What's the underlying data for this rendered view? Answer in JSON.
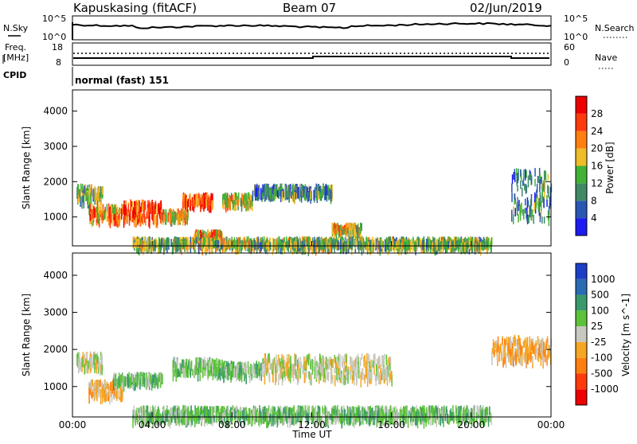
{
  "header": {
    "station": "Kapuskasing (fitACF)",
    "beam": "Beam 07",
    "date": "02/Jun/2019"
  },
  "noise_panel": {
    "left_label": "N.Sky",
    "left_ticks": [
      "10^5",
      "10^0"
    ],
    "right_label": "N.Search",
    "right_ticks": [
      "10^5",
      "10^0"
    ]
  },
  "freq_panel": {
    "left_label_1": "Freq.",
    "left_label_2": "[MHz]",
    "left_ticks": [
      "18",
      "8"
    ],
    "right_label": "Nave",
    "right_ticks": [
      "60",
      "0"
    ],
    "cpid_label": "CPID",
    "cpid_name": "normal (fast) 151"
  },
  "time_axis": {
    "label": "Time UT",
    "ticks": [
      "00:00",
      "04:00",
      "08:00",
      "12:00",
      "16:00",
      "20:00",
      "00:00"
    ]
  },
  "range_axis": {
    "label": "Slant Range [km]",
    "ticks": [
      "1000",
      "2000",
      "3000",
      "4000"
    ]
  },
  "power_colorbar": {
    "label": "Power [dB]",
    "ticks": [
      "4",
      "8",
      "12",
      "16",
      "20",
      "24",
      "28"
    ],
    "colors": [
      "#1c1cf2",
      "#2a57b4",
      "#3f8a66",
      "#41b236",
      "#f0bc28",
      "#ff7f0e",
      "#ff3b0e",
      "#ee0000"
    ]
  },
  "velocity_colorbar": {
    "label": "Velocity [m s^-1]",
    "ticks": [
      "1000",
      "500",
      "100",
      "25",
      "-25",
      "-100",
      "-500",
      "-1000"
    ],
    "colors": [
      "#1c3fc8",
      "#2a6bb4",
      "#3a9a6b",
      "#5cc23a",
      "#c8c8c0",
      "#f5a623",
      "#ff7f0e",
      "#ff3b0e",
      "#ee0000"
    ]
  },
  "chart_data": [
    {
      "type": "heatmap",
      "title": "Power",
      "xlabel": "Time UT",
      "ylabel": "Slant Range [km]",
      "xlim": [
        0,
        24
      ],
      "ylim": [
        180,
        4600
      ],
      "colorbar": "Power [dB]",
      "regions": [
        {
          "t": [
            0.2,
            1.5
          ],
          "r": [
            1550,
            1950
          ],
          "level": 3
        },
        {
          "t": [
            0.8,
            2.5
          ],
          "r": [
            1000,
            1400
          ],
          "level": 5
        },
        {
          "t": [
            2.5,
            4.5
          ],
          "r": [
            1000,
            1500
          ],
          "level": 6
        },
        {
          "t": [
            4.5,
            5.8
          ],
          "r": [
            1050,
            1250
          ],
          "level": 4
        },
        {
          "t": [
            5.5,
            7.0
          ],
          "r": [
            1450,
            1700
          ],
          "level": 6
        },
        {
          "t": [
            6.0,
            7.5
          ],
          "r": [
            450,
            650
          ],
          "level": 5
        },
        {
          "t": [
            7.5,
            9.0
          ],
          "r": [
            1450,
            1700
          ],
          "level": 4
        },
        {
          "t": [
            9.0,
            13.0
          ],
          "r": [
            1700,
            1950
          ],
          "level": 2
        },
        {
          "t": [
            13.0,
            14.5
          ],
          "r": [
            650,
            850
          ],
          "level": 4
        },
        {
          "t": [
            3.0,
            21.0
          ],
          "r": [
            250,
            450
          ],
          "level": 3
        },
        {
          "t": [
            22.0,
            24.0
          ],
          "r": [
            1000,
            2400
          ],
          "level": 2
        }
      ]
    },
    {
      "type": "heatmap",
      "title": "Velocity",
      "xlabel": "Time UT",
      "ylabel": "Slant Range [km]",
      "xlim": [
        0,
        24
      ],
      "ylim": [
        180,
        4600
      ],
      "colorbar": "Velocity [m s^-1]",
      "regions": [
        {
          "t": [
            0.2,
            1.5
          ],
          "r": [
            1550,
            1950
          ],
          "level": 4
        },
        {
          "t": [
            0.8,
            2.5
          ],
          "r": [
            800,
            1200
          ],
          "level": 5
        },
        {
          "t": [
            2.0,
            4.5
          ],
          "r": [
            1200,
            1400
          ],
          "level": 3
        },
        {
          "t": [
            5.0,
            7.5
          ],
          "r": [
            1450,
            1800
          ],
          "level": 3
        },
        {
          "t": [
            7.5,
            9.5
          ],
          "r": [
            1400,
            1700
          ],
          "level": 3
        },
        {
          "t": [
            9.5,
            16.0
          ],
          "r": [
            1300,
            1900
          ],
          "level": 4
        },
        {
          "t": [
            3.0,
            21.0
          ],
          "r": [
            200,
            500
          ],
          "level": 3
        },
        {
          "t": [
            21.0,
            24.0
          ],
          "r": [
            1800,
            2400
          ],
          "level": 5
        }
      ]
    }
  ]
}
